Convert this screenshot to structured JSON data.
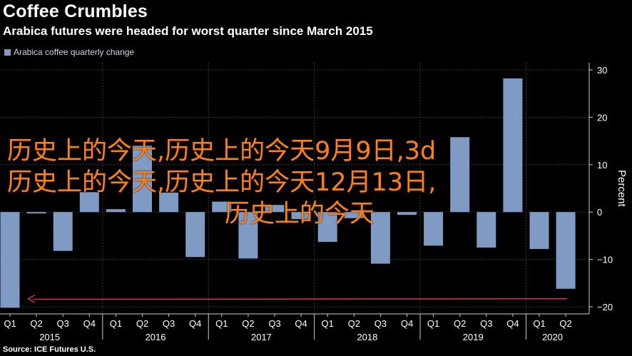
{
  "header": {
    "title": "Coffee Crumbles",
    "subtitle": "Arabica futures were headed for worst quarter since March 2015"
  },
  "legend": {
    "label": "Arabica coffee quarterly change"
  },
  "source": "Source: ICE Futures U.S.",
  "watermark": {
    "line1": "历史上的今天,历史上的今天9月9日,3d",
    "line2": "历史上的今天,历史上的今天12月13日,",
    "line3": "历史上的今天"
  },
  "colors": {
    "bar": "#7f9bc4",
    "arrow": "#e0334f",
    "grid": "#3a3a3a",
    "axis": "#cccccc",
    "watermark": "#ff7f16"
  },
  "chart_data": {
    "type": "bar",
    "categories": [
      "Q1 2015",
      "Q2 2015",
      "Q3 2015",
      "Q4 2015",
      "Q1 2016",
      "Q2 2016",
      "Q3 2016",
      "Q4 2016",
      "Q1 2017",
      "Q2 2017",
      "Q3 2017",
      "Q4 2017",
      "Q1 2018",
      "Q2 2018",
      "Q3 2018",
      "Q4 2018",
      "Q1 2019",
      "Q2 2019",
      "Q3 2019",
      "Q4 2019",
      "Q1 2020",
      "Q2 2020"
    ],
    "quarter_labels": [
      "Q1",
      "Q2",
      "Q3",
      "Q4",
      "Q1",
      "Q2",
      "Q3",
      "Q4",
      "Q1",
      "Q2",
      "Q3",
      "Q4",
      "Q1",
      "Q2",
      "Q3",
      "Q4",
      "Q1",
      "Q2",
      "Q3",
      "Q4",
      "Q1",
      "Q2"
    ],
    "year_labels": [
      {
        "label": "2015",
        "center_index": 1.5
      },
      {
        "label": "2016",
        "center_index": 5.5
      },
      {
        "label": "2017",
        "center_index": 9.5
      },
      {
        "label": "2018",
        "center_index": 13.5
      },
      {
        "label": "2019",
        "center_index": 17.5
      },
      {
        "label": "2020",
        "center_index": 20.5
      }
    ],
    "series": [
      {
        "name": "Arabica coffee quarterly change",
        "values": [
          -20.2,
          -0.3,
          -8.2,
          4.2,
          0.6,
          14.0,
          4.1,
          -9.5,
          2.2,
          -9.8,
          1.5,
          -1.5,
          -6.3,
          -1.3,
          -10.9,
          -0.6,
          -7.1,
          15.8,
          -7.5,
          28.2,
          -7.8,
          -16.2
        ]
      }
    ],
    "ylabel": "Percent",
    "ylim": [
      -21.5,
      31.5
    ],
    "yticks": [
      30,
      20,
      10,
      0,
      -10,
      -20
    ],
    "ytick_labels": [
      "30",
      "20",
      "10",
      "0",
      "−10",
      "−20"
    ],
    "grid": true,
    "annotation": {
      "type": "arrow",
      "from_index": 21,
      "to_index": 1,
      "y_value": -18.3,
      "direction": "left"
    }
  }
}
